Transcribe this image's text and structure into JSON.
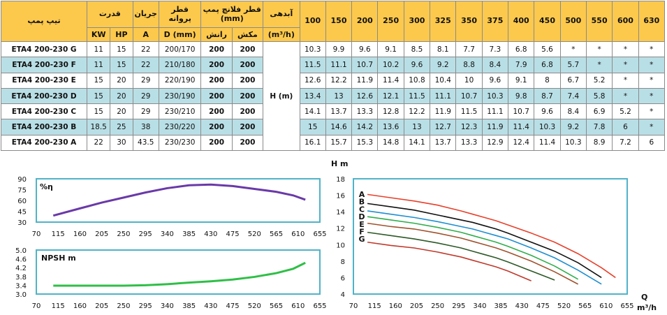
{
  "table": {
    "header": {
      "model": "تیپ پمپ",
      "power": "قدرت",
      "current": "جریان",
      "impeller_diameter": "قطر پروانه",
      "flange": "قطر فلانچ پمپ (mm)",
      "flow": "آبدهی",
      "kw": "KW",
      "hp": "HP",
      "amp": "A",
      "dmm": "D (mm)",
      "discharge": "رانش",
      "suction": "مکش",
      "flow_unit": "(m³/h)",
      "flows": [
        "100",
        "150",
        "200",
        "250",
        "300",
        "325",
        "350",
        "375",
        "400",
        "450",
        "500",
        "550",
        "600",
        "630"
      ]
    },
    "head_label": "H (m)",
    "rows": [
      {
        "model": "ETA4 200-230 G",
        "kw": "11",
        "hp": "15",
        "a": "22",
        "d": "200/170",
        "dis": "200",
        "suc": "200",
        "h": [
          "10.3",
          "9.9",
          "9.6",
          "9.1",
          "8.5",
          "8.1",
          "7.7",
          "7.3",
          "6.8",
          "5.6",
          "*",
          "*",
          "*",
          "*"
        ]
      },
      {
        "model": "ETA4 200-230 F",
        "kw": "11",
        "hp": "15",
        "a": "22",
        "d": "210/180",
        "dis": "200",
        "suc": "200",
        "h": [
          "11.5",
          "11.1",
          "10.7",
          "10.2",
          "9.6",
          "9.2",
          "8.8",
          "8.4",
          "7.9",
          "6.8",
          "5.7",
          "*",
          "*",
          "*"
        ]
      },
      {
        "model": "ETA4 200-230 E",
        "kw": "15",
        "hp": "20",
        "a": "29",
        "d": "220/190",
        "dis": "200",
        "suc": "200",
        "h": [
          "12.6",
          "12.2",
          "11.9",
          "11.4",
          "10.8",
          "10.4",
          "10",
          "9.6",
          "9.1",
          "8",
          "6.7",
          "5.2",
          "*",
          "*"
        ]
      },
      {
        "model": "ETA4 200-230 D",
        "kw": "15",
        "hp": "20",
        "a": "29",
        "d": "230/190",
        "dis": "200",
        "suc": "200",
        "h": [
          "13.4",
          "13",
          "12.6",
          "12.1",
          "11.5",
          "11.1",
          "10.7",
          "10.3",
          "9.8",
          "8.7",
          "7.4",
          "5.8",
          "*",
          "*"
        ]
      },
      {
        "model": "ETA4 200-230 C",
        "kw": "15",
        "hp": "20",
        "a": "29",
        "d": "230/210",
        "dis": "200",
        "suc": "200",
        "h": [
          "14.1",
          "13.7",
          "13.3",
          "12.8",
          "12.2",
          "11.9",
          "11.5",
          "11.1",
          "10.7",
          "9.6",
          "8.4",
          "6.9",
          "5.2",
          "*"
        ]
      },
      {
        "model": "ETA4 200-230 B",
        "kw": "18.5",
        "hp": "25",
        "a": "38",
        "d": "230/220",
        "dis": "200",
        "suc": "200",
        "h": [
          "15",
          "14.6",
          "14.2",
          "13.6",
          "13",
          "12.7",
          "12.3",
          "11.9",
          "11.4",
          "10.3",
          "9.2",
          "7.8",
          "6",
          "*"
        ]
      },
      {
        "model": "ETA4 200-230 A",
        "kw": "22",
        "hp": "30",
        "a": "43.5",
        "d": "230/230",
        "dis": "200",
        "suc": "200",
        "h": [
          "16.1",
          "15.7",
          "15.3",
          "14.8",
          "14.1",
          "13.7",
          "13.3",
          "12.9",
          "12.4",
          "11.4",
          "10.3",
          "8.9",
          "7.2",
          "6"
        ]
      }
    ]
  },
  "chart_data": [
    {
      "type": "line",
      "series_label": "%η",
      "x_ticks": [
        "70",
        "115",
        "160",
        "205",
        "250",
        "295",
        "340",
        "385",
        "430",
        "475",
        "520",
        "565",
        "610",
        "655"
      ],
      "y_ticks": [
        "90",
        "75",
        "60",
        "45",
        "30"
      ],
      "xlim": [
        70,
        655
      ],
      "ylim": [
        30,
        90
      ],
      "color": "#6a3aa8",
      "x": [
        105,
        160,
        205,
        250,
        295,
        340,
        385,
        430,
        475,
        520,
        565,
        600,
        625
      ],
      "y": [
        39,
        49,
        57,
        64,
        71,
        77,
        81,
        82,
        80,
        76,
        72,
        67,
        61
      ]
    },
    {
      "type": "line",
      "series_label": "NPSH m",
      "x_ticks": [
        "70",
        "115",
        "160",
        "205",
        "250",
        "295",
        "340",
        "385",
        "430",
        "475",
        "520",
        "565",
        "610",
        "655"
      ],
      "y_ticks": [
        "5.0",
        "4.6",
        "4.2",
        "3.8",
        "3.4",
        "3.0"
      ],
      "xlim": [
        70,
        655
      ],
      "ylim": [
        3.0,
        5.0
      ],
      "color": "#2fbf47",
      "x": [
        105,
        160,
        205,
        250,
        295,
        340,
        385,
        430,
        475,
        520,
        565,
        600,
        625
      ],
      "y": [
        3.38,
        3.38,
        3.38,
        3.38,
        3.4,
        3.45,
        3.52,
        3.58,
        3.66,
        3.78,
        3.95,
        4.15,
        4.42
      ]
    },
    {
      "type": "line",
      "ylabel": "H m",
      "xlabel_q": "Q",
      "xlabel_unit": "m³/h",
      "x_ticks": [
        "70",
        "115",
        "160",
        "205",
        "250",
        "295",
        "340",
        "385",
        "430",
        "475",
        "520",
        "565",
        "610",
        "655"
      ],
      "y_ticks": [
        "18",
        "16",
        "14",
        "12",
        "10",
        "8",
        "6",
        "4"
      ],
      "xlim": [
        70,
        655
      ],
      "ylim": [
        4,
        18
      ],
      "series": [
        {
          "name": "A",
          "color": "#e8402a",
          "x": [
            100,
            150,
            200,
            250,
            300,
            325,
            350,
            375,
            400,
            450,
            500,
            550,
            600,
            630
          ],
          "y": [
            16.1,
            15.7,
            15.3,
            14.8,
            14.1,
            13.7,
            13.3,
            12.9,
            12.4,
            11.4,
            10.3,
            8.9,
            7.2,
            6
          ]
        },
        {
          "name": "B",
          "color": "#111111",
          "x": [
            100,
            150,
            200,
            250,
            300,
            325,
            350,
            375,
            400,
            450,
            500,
            550,
            600
          ],
          "y": [
            15,
            14.6,
            14.2,
            13.6,
            13,
            12.7,
            12.3,
            11.9,
            11.4,
            10.3,
            9.2,
            7.8,
            6
          ]
        },
        {
          "name": "C",
          "color": "#1e8fd0",
          "x": [
            100,
            150,
            200,
            250,
            300,
            325,
            350,
            375,
            400,
            450,
            500,
            550,
            600
          ],
          "y": [
            14.1,
            13.7,
            13.3,
            12.8,
            12.2,
            11.9,
            11.5,
            11.1,
            10.7,
            9.6,
            8.4,
            6.9,
            5.2
          ]
        },
        {
          "name": "D",
          "color": "#2fae4a",
          "x": [
            100,
            150,
            200,
            250,
            300,
            325,
            350,
            375,
            400,
            450,
            500,
            550
          ],
          "y": [
            13.4,
            13,
            12.6,
            12.1,
            11.5,
            11.1,
            10.7,
            10.3,
            9.8,
            8.7,
            7.4,
            5.8
          ]
        },
        {
          "name": "E",
          "color": "#a0522d",
          "x": [
            100,
            150,
            200,
            250,
            300,
            325,
            350,
            375,
            400,
            450,
            500,
            550
          ],
          "y": [
            12.6,
            12.2,
            11.9,
            11.4,
            10.8,
            10.4,
            10,
            9.6,
            9.1,
            8,
            6.7,
            5.2
          ]
        },
        {
          "name": "F",
          "color": "#2d5a27",
          "x": [
            100,
            150,
            200,
            250,
            300,
            325,
            350,
            375,
            400,
            450,
            500
          ],
          "y": [
            11.5,
            11.1,
            10.7,
            10.2,
            9.6,
            9.2,
            8.8,
            8.4,
            7.9,
            6.8,
            5.7
          ]
        },
        {
          "name": "G",
          "color": "#c0392b",
          "x": [
            100,
            150,
            200,
            250,
            300,
            325,
            350,
            375,
            400,
            450
          ],
          "y": [
            10.3,
            9.9,
            9.6,
            9.1,
            8.5,
            8.1,
            7.7,
            7.3,
            6.8,
            5.6
          ]
        }
      ]
    }
  ]
}
